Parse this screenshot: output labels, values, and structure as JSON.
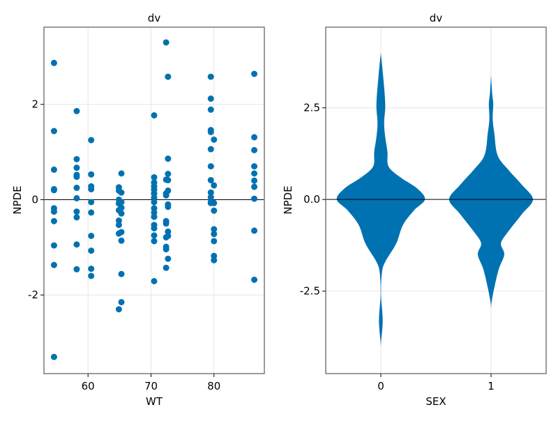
{
  "figure": {
    "background": "#ffffff",
    "marker_color": "#0072b2",
    "grid_color": "#e6e6e6",
    "frame_color": "#7a7a7a",
    "zero_line_color": "#000000"
  },
  "chart_data": [
    {
      "type": "scatter",
      "title": "dv",
      "xlabel": "WT",
      "ylabel": "NPDE",
      "xlim": [
        53.0,
        88.0
      ],
      "ylim": [
        -3.65,
        3.62
      ],
      "xticks": [
        60,
        70,
        80
      ],
      "xtick_labels": [
        "60",
        "70",
        "80"
      ],
      "yticks": [
        -2,
        0,
        2
      ],
      "ytick_labels": [
        "-2",
        "0",
        "2"
      ],
      "grid": true,
      "hline": 0,
      "points": [
        {
          "x": 54.6,
          "y": 2.87
        },
        {
          "x": 54.6,
          "y": 1.44
        },
        {
          "x": 54.6,
          "y": 0.63
        },
        {
          "x": 54.6,
          "y": 0.22
        },
        {
          "x": 54.6,
          "y": 0.2
        },
        {
          "x": 54.6,
          "y": -0.18
        },
        {
          "x": 54.6,
          "y": -0.25
        },
        {
          "x": 54.6,
          "y": -0.45
        },
        {
          "x": 54.6,
          "y": -0.96
        },
        {
          "x": 54.6,
          "y": -1.37
        },
        {
          "x": 54.6,
          "y": -3.3
        },
        {
          "x": 58.2,
          "y": 1.86
        },
        {
          "x": 58.2,
          "y": 0.85
        },
        {
          "x": 58.2,
          "y": 0.67
        },
        {
          "x": 58.2,
          "y": 0.52
        },
        {
          "x": 58.2,
          "y": 0.48
        },
        {
          "x": 58.2,
          "y": 0.25
        },
        {
          "x": 58.2,
          "y": 0.03
        },
        {
          "x": 58.2,
          "y": -0.25
        },
        {
          "x": 58.2,
          "y": -0.37
        },
        {
          "x": 58.2,
          "y": -0.94
        },
        {
          "x": 58.2,
          "y": -1.46
        },
        {
          "x": 60.5,
          "y": 1.25
        },
        {
          "x": 60.5,
          "y": 0.53
        },
        {
          "x": 60.5,
          "y": 0.28
        },
        {
          "x": 60.5,
          "y": 0.22
        },
        {
          "x": 60.5,
          "y": -0.05
        },
        {
          "x": 60.5,
          "y": -0.27
        },
        {
          "x": 60.5,
          "y": -0.76
        },
        {
          "x": 60.5,
          "y": -1.07
        },
        {
          "x": 60.5,
          "y": -1.45
        },
        {
          "x": 60.5,
          "y": -1.6
        },
        {
          "x": 64.9,
          "y": 0.26
        },
        {
          "x": 64.9,
          "y": 0.19
        },
        {
          "x": 64.9,
          "y": 0.0
        },
        {
          "x": 64.9,
          "y": -0.08
        },
        {
          "x": 64.9,
          "y": -0.22
        },
        {
          "x": 64.9,
          "y": -0.44
        },
        {
          "x": 64.9,
          "y": -0.53
        },
        {
          "x": 64.9,
          "y": -0.71
        },
        {
          "x": 64.9,
          "y": -2.3
        },
        {
          "x": 65.3,
          "y": 0.55
        },
        {
          "x": 65.3,
          "y": 0.15
        },
        {
          "x": 65.3,
          "y": -0.05
        },
        {
          "x": 65.3,
          "y": -0.17
        },
        {
          "x": 65.3,
          "y": -0.29
        },
        {
          "x": 65.3,
          "y": -0.68
        },
        {
          "x": 65.3,
          "y": -0.86
        },
        {
          "x": 65.3,
          "y": -1.56
        },
        {
          "x": 65.3,
          "y": -2.15
        },
        {
          "x": 70.5,
          "y": 1.77
        },
        {
          "x": 70.5,
          "y": 0.47
        },
        {
          "x": 70.5,
          "y": 0.36
        },
        {
          "x": 70.5,
          "y": 0.28
        },
        {
          "x": 70.5,
          "y": 0.21
        },
        {
          "x": 70.5,
          "y": 0.13
        },
        {
          "x": 70.5,
          "y": 0.04
        },
        {
          "x": 70.5,
          "y": -0.05
        },
        {
          "x": 70.5,
          "y": -0.18
        },
        {
          "x": 70.5,
          "y": -0.27
        },
        {
          "x": 70.5,
          "y": -0.36
        },
        {
          "x": 70.5,
          "y": -0.53
        },
        {
          "x": 70.5,
          "y": -0.6
        },
        {
          "x": 70.5,
          "y": -0.75
        },
        {
          "x": 70.5,
          "y": -0.87
        },
        {
          "x": 70.5,
          "y": -1.71
        },
        {
          "x": 72.4,
          "y": 3.3
        },
        {
          "x": 72.4,
          "y": 0.42
        },
        {
          "x": 72.4,
          "y": 0.13
        },
        {
          "x": 72.4,
          "y": 0.09
        },
        {
          "x": 72.4,
          "y": -0.45
        },
        {
          "x": 72.4,
          "y": -0.5
        },
        {
          "x": 72.4,
          "y": -0.79
        },
        {
          "x": 72.4,
          "y": -0.99
        },
        {
          "x": 72.4,
          "y": -1.04
        },
        {
          "x": 72.4,
          "y": -1.43
        },
        {
          "x": 72.7,
          "y": 2.58
        },
        {
          "x": 72.7,
          "y": 0.86
        },
        {
          "x": 72.7,
          "y": 0.54
        },
        {
          "x": 72.7,
          "y": 0.41
        },
        {
          "x": 72.7,
          "y": 0.19
        },
        {
          "x": 72.7,
          "y": -0.1
        },
        {
          "x": 72.7,
          "y": -0.15
        },
        {
          "x": 72.7,
          "y": -0.67
        },
        {
          "x": 72.7,
          "y": -0.76
        },
        {
          "x": 72.7,
          "y": -1.24
        },
        {
          "x": 79.5,
          "y": 2.58
        },
        {
          "x": 79.5,
          "y": 2.12
        },
        {
          "x": 79.5,
          "y": 1.89
        },
        {
          "x": 79.5,
          "y": 1.46
        },
        {
          "x": 79.5,
          "y": 1.42
        },
        {
          "x": 79.5,
          "y": 1.06
        },
        {
          "x": 79.5,
          "y": 0.7
        },
        {
          "x": 79.5,
          "y": 0.41
        },
        {
          "x": 79.5,
          "y": 0.15
        },
        {
          "x": 79.5,
          "y": 0.05
        },
        {
          "x": 79.5,
          "y": -0.05
        },
        {
          "x": 79.5,
          "y": -0.07
        },
        {
          "x": 80.0,
          "y": 1.26
        },
        {
          "x": 80.0,
          "y": 0.3
        },
        {
          "x": 80.0,
          "y": -0.07
        },
        {
          "x": 80.0,
          "y": -0.23
        },
        {
          "x": 80.0,
          "y": -0.62
        },
        {
          "x": 80.0,
          "y": -0.72
        },
        {
          "x": 80.0,
          "y": -0.87
        },
        {
          "x": 80.0,
          "y": -1.18
        },
        {
          "x": 80.0,
          "y": -1.27
        },
        {
          "x": 86.4,
          "y": 2.64
        },
        {
          "x": 86.4,
          "y": 1.31
        },
        {
          "x": 86.4,
          "y": 1.04
        },
        {
          "x": 86.4,
          "y": 0.7
        },
        {
          "x": 86.4,
          "y": 0.55
        },
        {
          "x": 86.4,
          "y": 0.4
        },
        {
          "x": 86.4,
          "y": 0.27
        },
        {
          "x": 86.4,
          "y": 0.02
        },
        {
          "x": 86.4,
          "y": -0.65
        },
        {
          "x": 86.4,
          "y": -1.68
        }
      ]
    },
    {
      "type": "violin",
      "title": "dv",
      "xlabel": "SEX",
      "ylabel": "NPDE",
      "xlim": [
        -0.5,
        1.5
      ],
      "ylim": [
        -4.75,
        4.7
      ],
      "xticks": [
        0,
        1
      ],
      "xtick_labels": [
        "0",
        "1"
      ],
      "yticks": [
        -2.5,
        0.0,
        2.5
      ],
      "ytick_labels": [
        "-2.5",
        "0.0",
        "2.5"
      ],
      "grid": true,
      "hline": 0,
      "categories": [
        "0",
        "1"
      ],
      "series": [
        {
          "name": "0",
          "range": [
            -4.1,
            4.0
          ],
          "modes": [
            0.0,
            1.3,
            2.6,
            -3.3
          ],
          "half_width_profile": [
            {
              "y": 4.0,
              "w": 0.0
            },
            {
              "y": 3.4,
              "w": 0.02
            },
            {
              "y": 2.6,
              "w": 0.04
            },
            {
              "y": 2.1,
              "w": 0.03
            },
            {
              "y": 1.7,
              "w": 0.04
            },
            {
              "y": 1.3,
              "w": 0.06
            },
            {
              "y": 0.9,
              "w": 0.07
            },
            {
              "y": 0.6,
              "w": 0.18
            },
            {
              "y": 0.3,
              "w": 0.33
            },
            {
              "y": 0.0,
              "w": 0.4
            },
            {
              "y": -0.3,
              "w": 0.3
            },
            {
              "y": -0.7,
              "w": 0.2
            },
            {
              "y": -1.2,
              "w": 0.14
            },
            {
              "y": -1.7,
              "w": 0.04
            },
            {
              "y": -2.0,
              "w": 0.01
            },
            {
              "y": -2.6,
              "w": 0.002
            },
            {
              "y": -3.3,
              "w": 0.017
            },
            {
              "y": -3.9,
              "w": 0.002
            },
            {
              "y": -4.1,
              "w": 0.0
            }
          ]
        },
        {
          "name": "1",
          "range": [
            -3.0,
            3.4
          ],
          "modes": [
            0.0,
            -1.5,
            2.6
          ],
          "half_width_profile": [
            {
              "y": 3.4,
              "w": 0.0
            },
            {
              "y": 2.9,
              "w": 0.01
            },
            {
              "y": 2.6,
              "w": 0.02
            },
            {
              "y": 2.2,
              "w": 0.015
            },
            {
              "y": 1.8,
              "w": 0.03
            },
            {
              "y": 1.2,
              "w": 0.06
            },
            {
              "y": 0.8,
              "w": 0.16
            },
            {
              "y": 0.4,
              "w": 0.28
            },
            {
              "y": 0.0,
              "w": 0.38
            },
            {
              "y": -0.4,
              "w": 0.28
            },
            {
              "y": -0.9,
              "w": 0.15
            },
            {
              "y": -1.2,
              "w": 0.09
            },
            {
              "y": -1.5,
              "w": 0.12
            },
            {
              "y": -1.9,
              "w": 0.07
            },
            {
              "y": -2.4,
              "w": 0.03
            },
            {
              "y": -2.8,
              "w": 0.005
            },
            {
              "y": -3.0,
              "w": 0.0
            }
          ]
        }
      ]
    }
  ]
}
